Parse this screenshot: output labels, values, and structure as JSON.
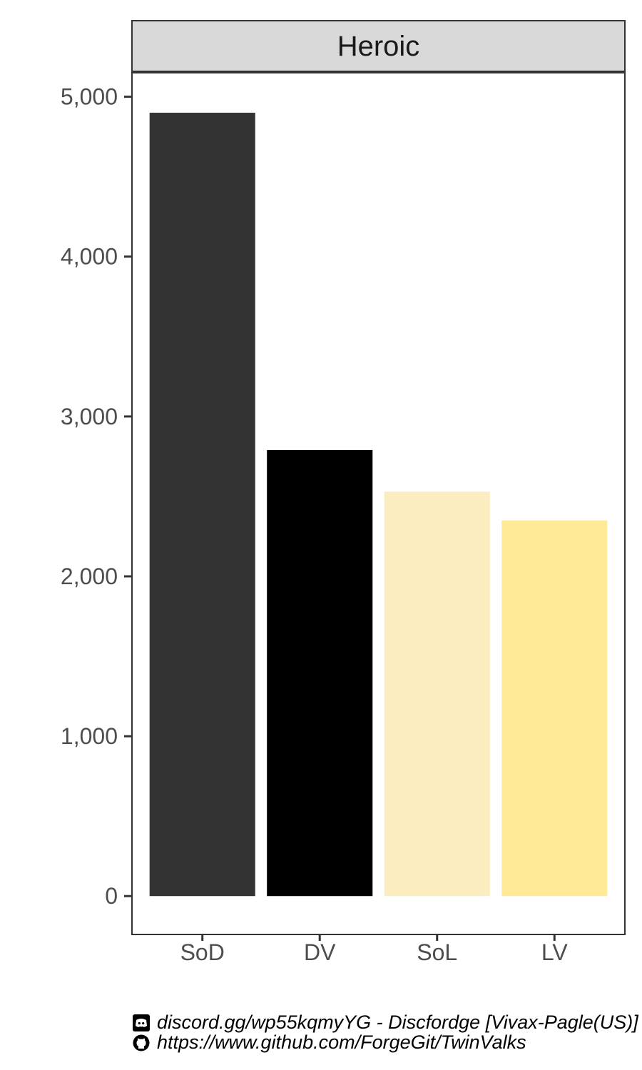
{
  "chart_data": {
    "type": "bar",
    "facet_title": "Heroic",
    "categories": [
      "SoD",
      "DV",
      "SoL",
      "LV"
    ],
    "values": [
      4900,
      2790,
      2530,
      2350
    ],
    "colors": [
      "#333333",
      "#000000",
      "#fcedc1",
      "#feea97"
    ],
    "y_ticks": [
      0,
      1000,
      2000,
      3000,
      4000,
      5000
    ],
    "y_tick_labels": [
      "0",
      "1,000",
      "2,000",
      "3,000",
      "4,000",
      "5,000"
    ],
    "ylim": [
      -240,
      5150
    ],
    "xlabel": "",
    "ylabel": "",
    "grid": false,
    "legend": "none"
  },
  "captions": {
    "discord": {
      "icon": "discord-icon",
      "text": "discord.gg/wp55kqmyYG - Discfordge [Vivax-Pagle(US)]"
    },
    "github": {
      "icon": "github-icon",
      "text": "https://www.github.com/ForgeGit/TwinValks"
    }
  }
}
